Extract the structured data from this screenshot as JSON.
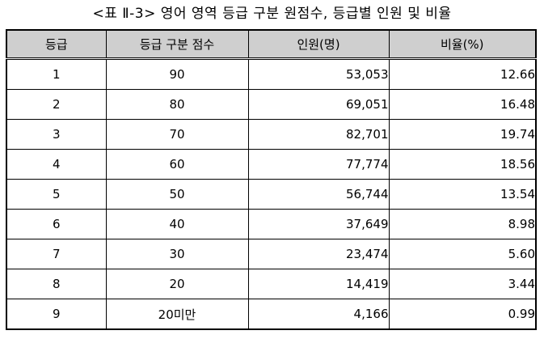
{
  "caption": "<표 Ⅱ-3> 영어 영역 등급 구분 원점수, 등급별 인원 및 비율",
  "table": {
    "headers": [
      "등급",
      "등급 구분 점수",
      "인원(명)",
      "비율(%)"
    ],
    "rows": [
      {
        "grade": "1",
        "score": "90",
        "count": "53,053",
        "ratio": "12.66"
      },
      {
        "grade": "2",
        "score": "80",
        "count": "69,051",
        "ratio": "16.48"
      },
      {
        "grade": "3",
        "score": "70",
        "count": "82,701",
        "ratio": "19.74"
      },
      {
        "grade": "4",
        "score": "60",
        "count": "77,774",
        "ratio": "18.56"
      },
      {
        "grade": "5",
        "score": "50",
        "count": "56,744",
        "ratio": "13.54"
      },
      {
        "grade": "6",
        "score": "40",
        "count": "37,649",
        "ratio": "8.98"
      },
      {
        "grade": "7",
        "score": "30",
        "count": "23,474",
        "ratio": "5.60"
      },
      {
        "grade": "8",
        "score": "20",
        "count": "14,419",
        "ratio": "3.44"
      },
      {
        "grade": "9",
        "score": "20미만",
        "count": "4,166",
        "ratio": "0.99"
      }
    ]
  }
}
